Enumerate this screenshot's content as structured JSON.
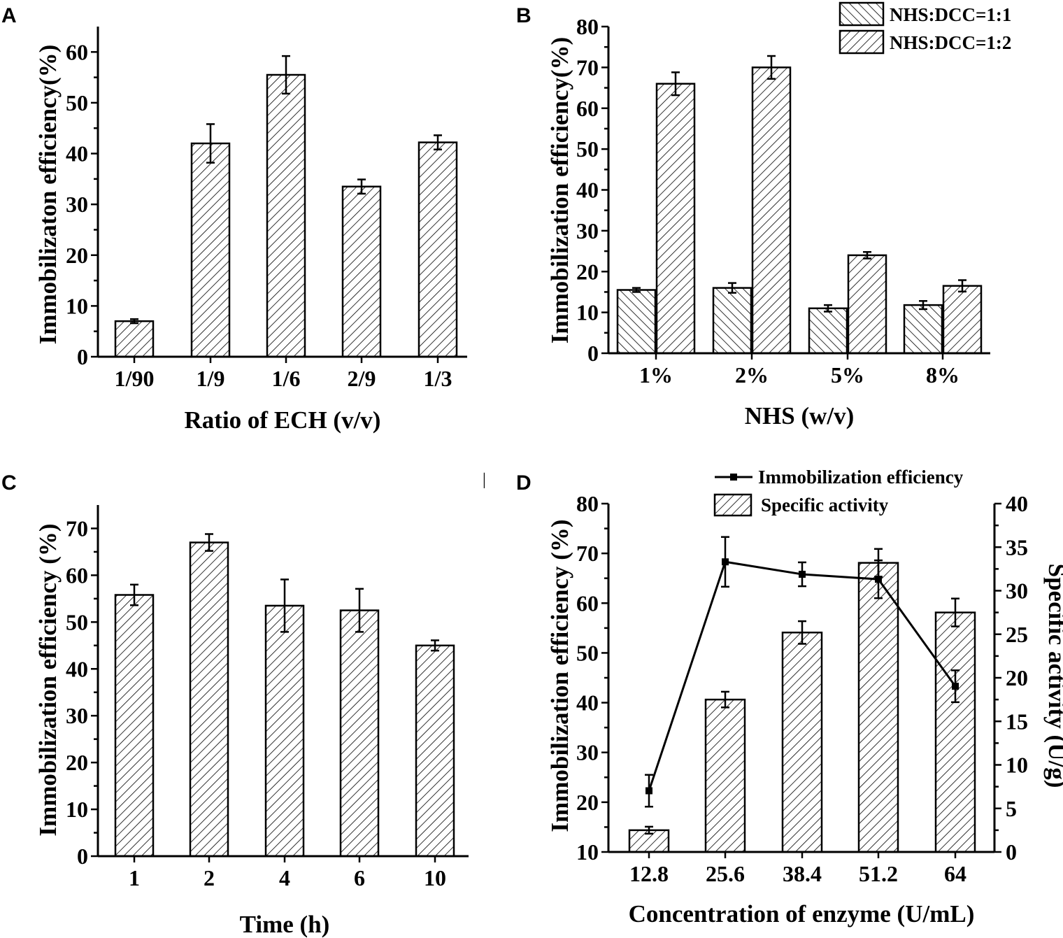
{
  "chart_data": [
    {
      "panel": "A",
      "type": "bar",
      "categories": [
        "1/90",
        "1/9",
        "1/6",
        "2/9",
        "1/3"
      ],
      "values": [
        7,
        42,
        55.5,
        33.5,
        42.2
      ],
      "errors": [
        0.4,
        3.8,
        3.7,
        1.4,
        1.4
      ],
      "xlabel": "Ratio of ECH (v/v)",
      "ylabel": "Immobilizaton efficiency(%)",
      "ylim": [
        0,
        65
      ],
      "yticks": [
        0,
        10,
        20,
        30,
        40,
        50,
        60
      ],
      "hatch": "forward"
    },
    {
      "panel": "B",
      "type": "bar",
      "categories": [
        "1%",
        "2%",
        "5%",
        "8%"
      ],
      "series": [
        {
          "name": "NHS:DCC=1:1",
          "values": [
            15.5,
            16,
            11,
            11.8
          ],
          "errors": [
            0.5,
            1.2,
            0.8,
            1.0
          ],
          "hatch": "backward"
        },
        {
          "name": "NHS:DCC=1:2",
          "values": [
            66,
            70,
            24,
            16.5
          ],
          "errors": [
            2.8,
            2.8,
            0.8,
            1.4
          ],
          "hatch": "forward"
        }
      ],
      "xlabel": "NHS (w/v)",
      "ylabel": "Immobilization efficiency(%)",
      "ylim": [
        0,
        80
      ],
      "yticks": [
        0,
        10,
        20,
        30,
        40,
        50,
        60,
        70,
        80
      ],
      "legend_position": "top-right"
    },
    {
      "panel": "C",
      "type": "bar",
      "categories": [
        "1",
        "2",
        "4",
        "6",
        "10"
      ],
      "values": [
        55.8,
        67,
        53.5,
        52.5,
        45
      ],
      "errors": [
        2.2,
        1.8,
        5.6,
        4.6,
        1.1
      ],
      "xlabel": "Time (h)",
      "ylabel": "Immobilization efficiency (%)",
      "ylim": [
        0,
        75
      ],
      "yticks": [
        0,
        10,
        20,
        30,
        40,
        50,
        60,
        70
      ],
      "hatch": "forward"
    },
    {
      "panel": "D",
      "type": "bar",
      "categories": [
        "12.8",
        "25.6",
        "38.4",
        "51.2",
        "64"
      ],
      "series": [
        {
          "name": "Specific activity",
          "kind": "bar",
          "axis": "right",
          "values": [
            2.5,
            17.5,
            25.2,
            33.2,
            27.5
          ],
          "errors": [
            0.4,
            0.9,
            1.3,
            1.6,
            1.6
          ],
          "hatch": "forward"
        },
        {
          "name": "Immobilization efficiency",
          "kind": "line",
          "axis": "left",
          "values": [
            22.3,
            68.3,
            65.8,
            64.8,
            43.3
          ],
          "errors": [
            3.2,
            5.0,
            2.4,
            3.8,
            3.2
          ]
        }
      ],
      "xlabel": "Concentration of enzyme  (U/mL)",
      "ylabel": "Immobilization efficiency (%)",
      "ylabel_right": "Specific activity (U/g)",
      "ylim": [
        10,
        80
      ],
      "ylim_right": [
        0,
        40
      ],
      "yticks": [
        10,
        20,
        30,
        40,
        50,
        60,
        70,
        80
      ],
      "yticks_right": [
        0,
        5,
        10,
        15,
        20,
        25,
        30,
        35,
        40
      ],
      "legend_position": "top"
    }
  ],
  "panel_labels": [
    "A",
    "B",
    "C",
    "D"
  ],
  "stray_mark": "|"
}
